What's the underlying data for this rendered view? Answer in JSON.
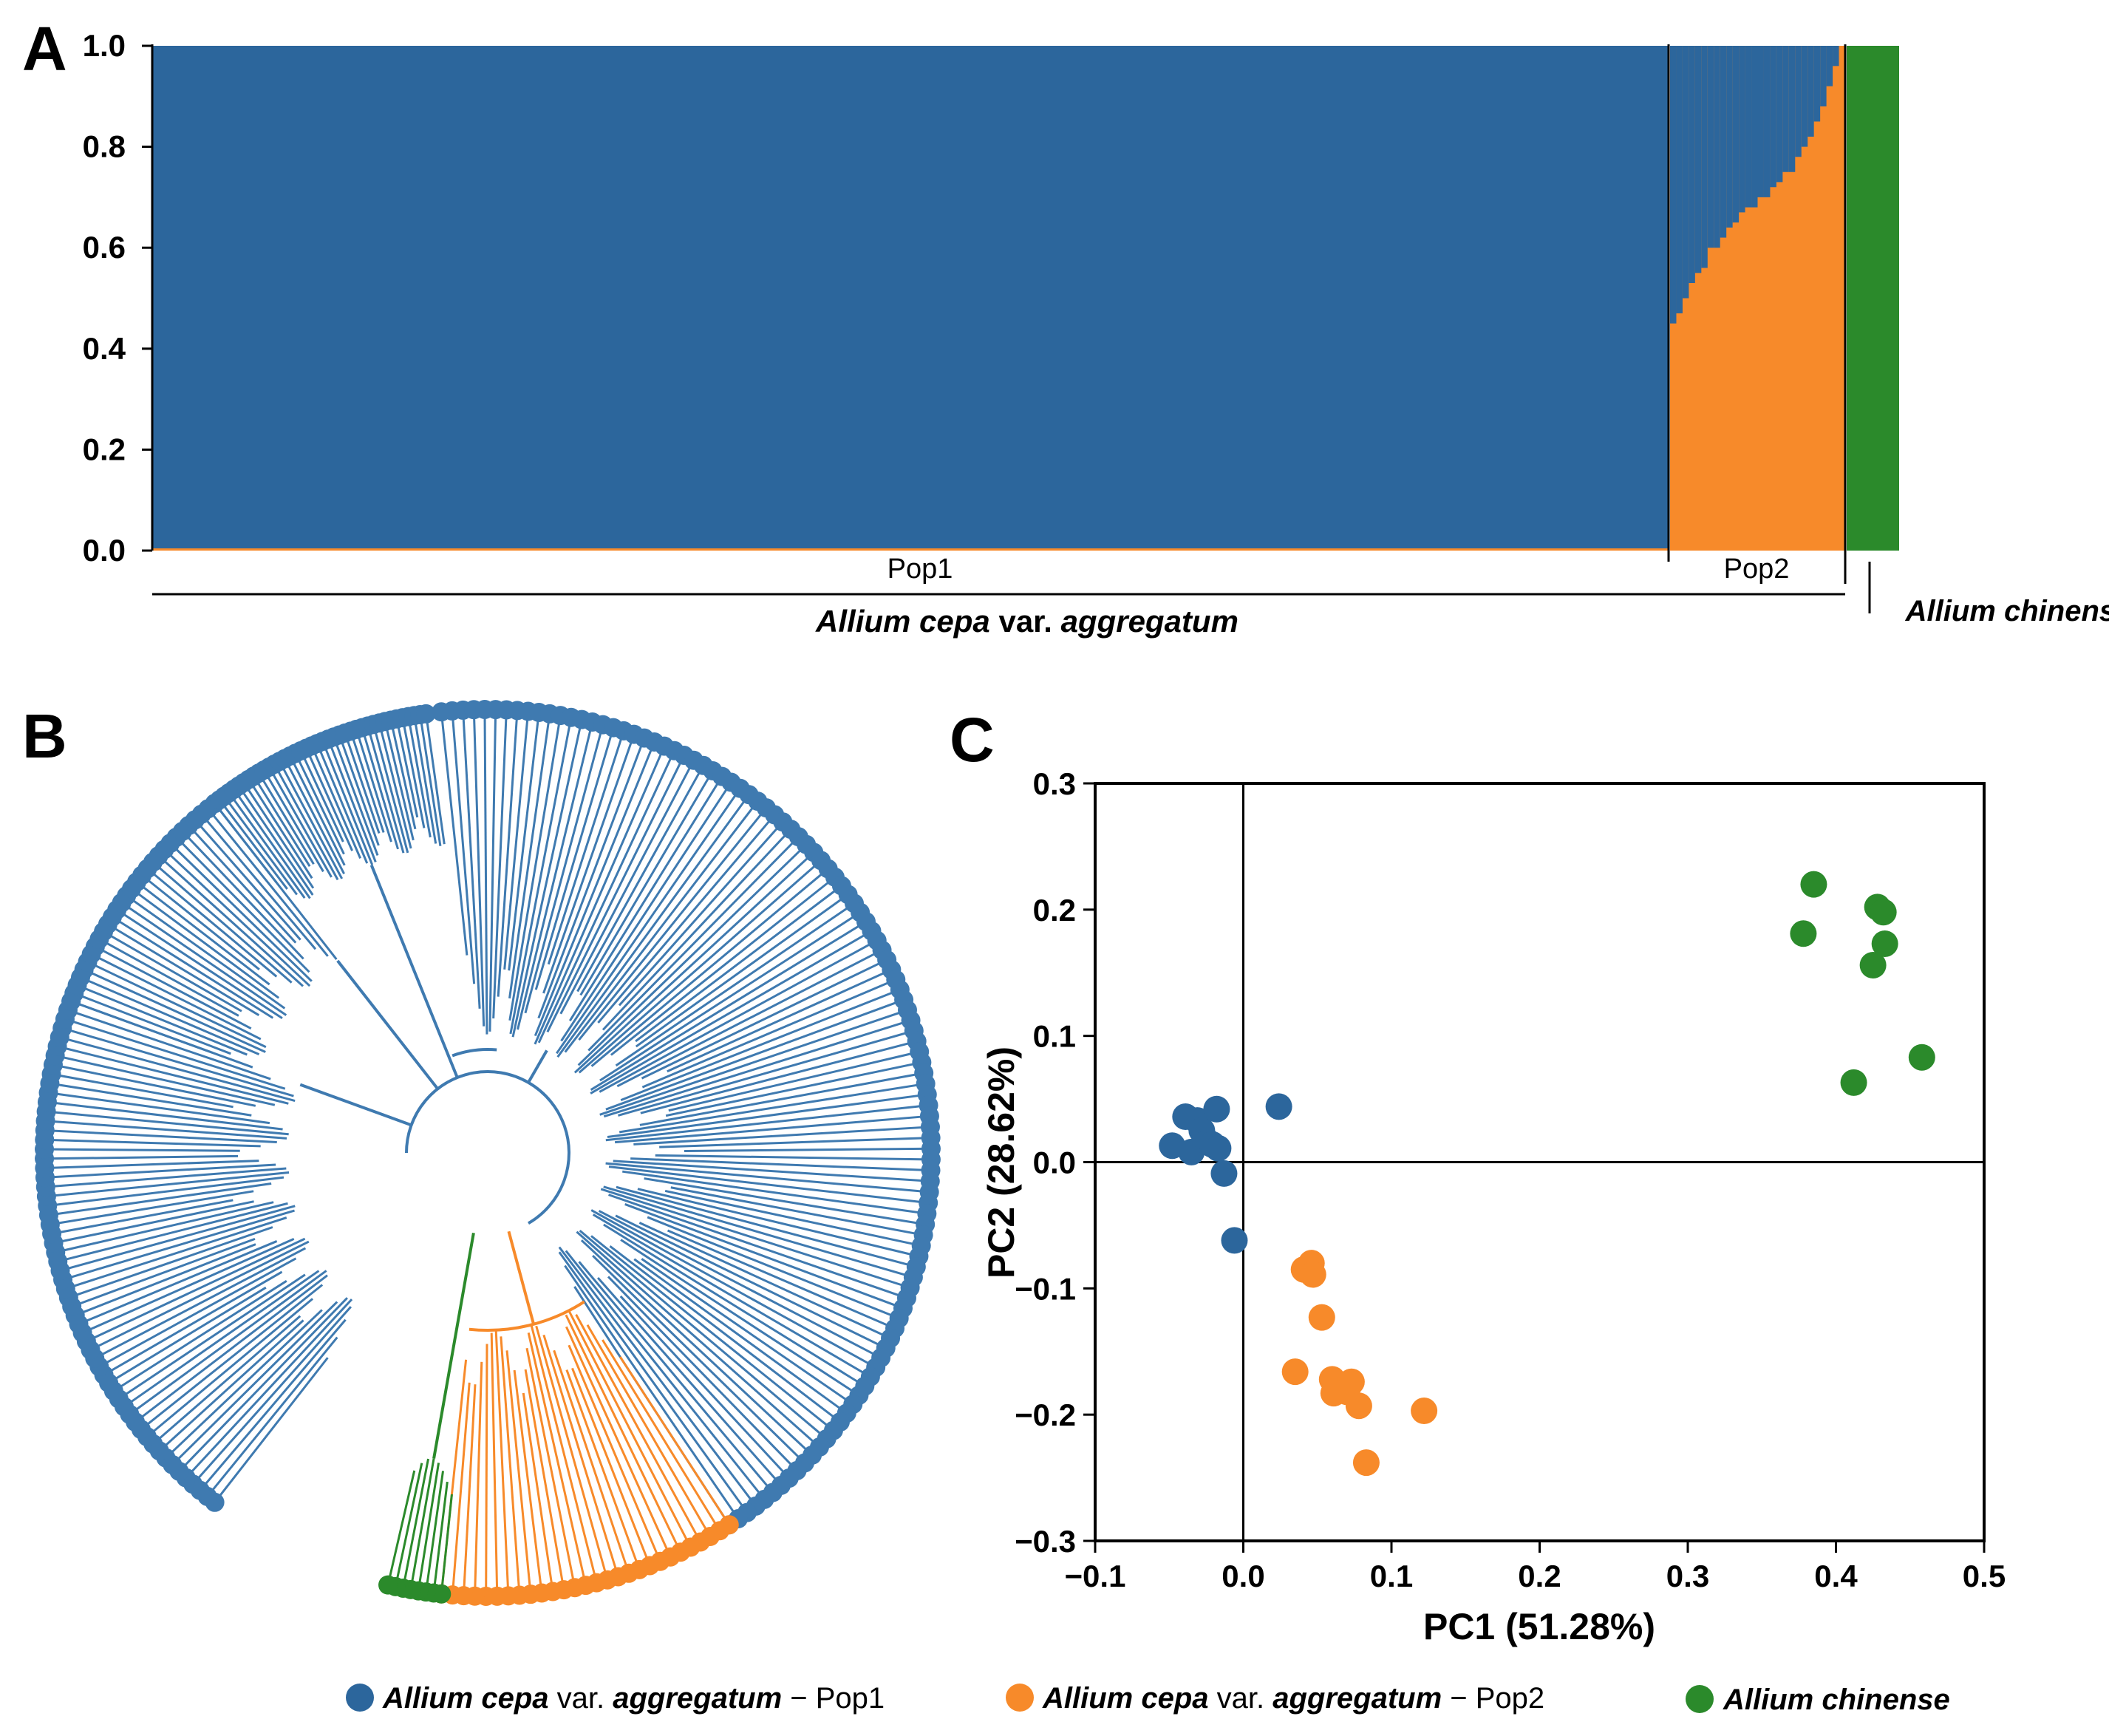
{
  "colors": {
    "pop1": "#2c669c",
    "pop2": "#f78a2a",
    "chinense": "#2b8a2b",
    "tree_pop1": "#3f7ab0"
  },
  "panel_labels": {
    "a": "A",
    "b": "B",
    "c": "C"
  },
  "chart_data": [
    {
      "id": "A",
      "type": "bar",
      "subtype": "stacked-admixture",
      "ylim": [
        0,
        1.0
      ],
      "yticks": [
        "0.0",
        "0.2",
        "0.4",
        "0.6",
        "0.8",
        "1.0"
      ],
      "series_names": [
        "Pop1 (blue)",
        "Pop2 (orange)",
        "Allium chinense (green)"
      ],
      "groups": {
        "pop1": "Pop1",
        "pop2": "Pop2",
        "species_main": "var.",
        "species_main_italic1": "Allium cepa",
        "species_main_italic2": "aggregatum",
        "species_other": "Allium chinense"
      },
      "n_individuals": {
        "pop1": 240,
        "pop2": 28,
        "chinense": 8
      },
      "pop2_blue_fraction_profile": [
        0.55,
        0.53,
        0.5,
        0.47,
        0.45,
        0.44,
        0.4,
        0.4,
        0.38,
        0.36,
        0.35,
        0.33,
        0.32,
        0.32,
        0.3,
        0.3,
        0.28,
        0.27,
        0.25,
        0.25,
        0.22,
        0.2,
        0.18,
        0.15,
        0.12,
        0.08,
        0.04,
        0.0
      ]
    },
    {
      "id": "B",
      "type": "diagram",
      "subtype": "circular-phylogenetic-tree",
      "tips": {
        "pop1": 240,
        "pop2": 28,
        "chinense": 8
      }
    },
    {
      "id": "C",
      "type": "scatter",
      "xlabel": "PC1 (51.28%)",
      "ylabel": "PC2 (28.62%)",
      "xlim": [
        -0.1,
        0.5
      ],
      "ylim": [
        -0.3,
        0.3
      ],
      "xticks": [
        "−0.1",
        "0.0",
        "0.1",
        "0.2",
        "0.3",
        "0.4",
        "0.5"
      ],
      "yticks": [
        "−0.3",
        "−0.2",
        "−0.1",
        "0.0",
        "0.1",
        "0.2",
        "0.3"
      ],
      "series": [
        {
          "name": "Allium cepa var. aggregatum − Pop1",
          "color_key": "pop1",
          "points": [
            [
              -0.048,
              0.013
            ],
            [
              -0.039,
              0.036
            ],
            [
              -0.035,
              0.008
            ],
            [
              -0.031,
              0.033
            ],
            [
              -0.028,
              0.025
            ],
            [
              -0.024,
              0.016
            ],
            [
              -0.021,
              0.014
            ],
            [
              -0.017,
              0.011
            ],
            [
              -0.018,
              0.042
            ],
            [
              -0.013,
              -0.009
            ],
            [
              -0.006,
              -0.062
            ],
            [
              0.024,
              0.044
            ]
          ]
        },
        {
          "name": "Allium cepa var. aggregatum − Pop2",
          "color_key": "pop2",
          "points": [
            [
              0.041,
              -0.085
            ],
            [
              0.046,
              -0.08
            ],
            [
              0.047,
              -0.089
            ],
            [
              0.053,
              -0.123
            ],
            [
              0.035,
              -0.166
            ],
            [
              0.06,
              -0.172
            ],
            [
              0.066,
              -0.177
            ],
            [
              0.07,
              -0.182
            ],
            [
              0.061,
              -0.183
            ],
            [
              0.073,
              -0.174
            ],
            [
              0.078,
              -0.193
            ],
            [
              0.083,
              -0.238
            ],
            [
              0.122,
              -0.197
            ]
          ]
        },
        {
          "name": "Allium chinense",
          "color_key": "chinense",
          "points": [
            [
              0.378,
              0.181
            ],
            [
              0.385,
              0.22
            ],
            [
              0.428,
              0.202
            ],
            [
              0.432,
              0.198
            ],
            [
              0.425,
              0.156
            ],
            [
              0.433,
              0.173
            ],
            [
              0.412,
              0.063
            ],
            [
              0.458,
              0.083
            ]
          ]
        }
      ]
    }
  ],
  "legend": {
    "item1": {
      "italic1": "Allium cepa",
      "mid": " var. ",
      "italic2": "aggregatum",
      "tail": " − Pop1"
    },
    "item2": {
      "italic1": "Allium cepa",
      "mid": " var. ",
      "italic2": "aggregatum",
      "tail": " − Pop2"
    },
    "item3": {
      "italic1": "Allium chinense"
    }
  }
}
